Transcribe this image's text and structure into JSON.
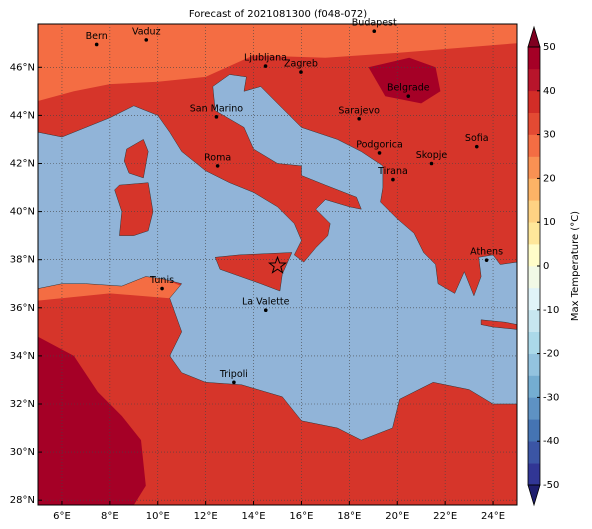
{
  "title": "Forecast of 2021081300 (f048-072)",
  "map": {
    "xlim": [
      5,
      25
    ],
    "ylim": [
      27.8,
      47.8
    ],
    "xticks": [
      {
        "value": 6,
        "label": "6°E"
      },
      {
        "value": 8,
        "label": "8°E"
      },
      {
        "value": 10,
        "label": "10°E"
      },
      {
        "value": 12,
        "label": "12°E"
      },
      {
        "value": 14,
        "label": "14°E"
      },
      {
        "value": 16,
        "label": "16°E"
      },
      {
        "value": 18,
        "label": "18°E"
      },
      {
        "value": 20,
        "label": "20°E"
      },
      {
        "value": 22,
        "label": "22°E"
      },
      {
        "value": 24,
        "label": "24°E"
      }
    ],
    "yticks": [
      {
        "value": 28,
        "label": "28°N"
      },
      {
        "value": 30,
        "label": "30°N"
      },
      {
        "value": 32,
        "label": "32°N"
      },
      {
        "value": 34,
        "label": "34°N"
      },
      {
        "value": 36,
        "label": "36°N"
      },
      {
        "value": 38,
        "label": "38°N"
      },
      {
        "value": 40,
        "label": "40°N"
      },
      {
        "value": 42,
        "label": "42°N"
      },
      {
        "value": 44,
        "label": "44°N"
      },
      {
        "value": 46,
        "label": "46°N"
      }
    ],
    "grid": true,
    "cities": [
      "Bern",
      "Vaduz",
      "Budapest",
      "Ljubljana",
      "Zagreb",
      "Belgrade",
      "San Marino",
      "Sarajevo",
      "Roma",
      "Podgorica",
      "Skopje",
      "Sofia",
      "Tirana",
      "Athens",
      "Tunis",
      "La Valette",
      "Tripoli"
    ]
  },
  "colorbar": {
    "label": "Max Temperature (°C)",
    "lim": [
      -50,
      50
    ],
    "ticks": [
      -50,
      -40,
      -30,
      -20,
      -10,
      0,
      10,
      20,
      30,
      40,
      50
    ],
    "colors": [
      "#313695",
      "#3b55a5",
      "#4574b3",
      "#5e92c3",
      "#74add1",
      "#93c3df",
      "#abd9e9",
      "#c7e6f0",
      "#e0f3f8",
      "#f1f9e6",
      "#fffdc9",
      "#fee79a",
      "#fed283",
      "#fdb366",
      "#f99153",
      "#f46d43",
      "#e34a33",
      "#d22d27",
      "#b8152b",
      "#a50026"
    ]
  }
}
